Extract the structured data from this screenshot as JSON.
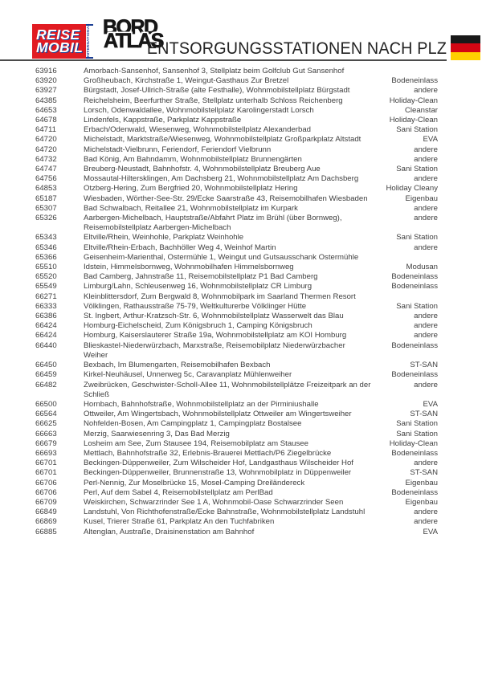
{
  "header": {
    "reisemobil_logo": {
      "line1": "REISE",
      "line2": "MOBIL",
      "subtitle": "INTERNATIONAL",
      "bg_color": "#e11b22",
      "accent_blue": "#1c3f94"
    },
    "bordatlas_logo": {
      "line1": "BORD",
      "line2": "ATLAS"
    },
    "title": "ENTSORGUNGSSTATIONEN NACH PLZ",
    "flag": {
      "name": "german-flag",
      "colors": [
        "#191919",
        "#d40613",
        "#ffd100"
      ]
    }
  },
  "table": {
    "rows": [
      {
        "plz": "63916",
        "description": "Amorbach-Sansenhof, Sansenhof 3, Stellplatz beim Golfclub Gut Sansenhof",
        "type": ""
      },
      {
        "plz": "63920",
        "description": "Großheubach, Kirchstraße 1, Weingut-Gasthaus Zur Bretzel",
        "type": "Bodeneinlass"
      },
      {
        "plz": "63927",
        "description": "Bürgstadt, Josef-Ullrich-Straße (alte Festhalle), Wohnmobilstellplatz Bürgstadt",
        "type": "andere"
      },
      {
        "plz": "64385",
        "description": "Reichelsheim, Beerfurther Straße, Stellplatz unterhalb Schloss Reichenberg",
        "type": "Holiday-Clean"
      },
      {
        "plz": "64653",
        "description": "Lorsch, Odenwaldallee, Wohnmobilstellplatz Karolingerstadt Lorsch",
        "type": "Cleanstar"
      },
      {
        "plz": "64678",
        "description": "Lindenfels, Kappstraße, Parkplatz Kappstraße",
        "type": "Holiday-Clean"
      },
      {
        "plz": "64711",
        "description": "Erbach/Odenwald, Wiesenweg, Wohnmobilstellplatz Alexanderbad",
        "type": "Sani Station"
      },
      {
        "plz": "64720",
        "description": "Michelstadt, Marktstraße/Wiesenweg, Wohnmobilstellplatz Großparkplatz Altstadt",
        "type": "EVA"
      },
      {
        "plz": "64720",
        "description": "Michelstadt-Vielbrunn, Feriendorf, Feriendorf Vielbrunn",
        "type": "andere"
      },
      {
        "plz": "64732",
        "description": "Bad König, Am Bahndamm, Wohnmobilstellplatz Brunnengärten",
        "type": "andere"
      },
      {
        "plz": "64747",
        "description": "Breuberg-Neustadt, Bahnhofstr. 4, Wohnmobilstellplatz Breuberg Aue",
        "type": "Sani Station"
      },
      {
        "plz": "64756",
        "description": "Mossautal-Hiltersklingen, Am Dachsberg 21, Wohnmobilstellplatz Am Dachsberg",
        "type": "andere"
      },
      {
        "plz": "64853",
        "description": "Otzberg-Hering, Zum Bergfried 20, Wohnmobilstellplatz Hering",
        "type": "Holiday Cleany"
      },
      {
        "plz": "65187",
        "description": "Wiesbaden, Wörther-See-Str. 29/Ecke Saarstraße 43, Reisemobilhafen Wiesbaden",
        "type": "Eigenbau"
      },
      {
        "plz": "65307",
        "description": "Bad Schwalbach, Reitallee 21, Wohnmobilstellplatz im Kurpark",
        "type": "andere"
      },
      {
        "plz": "65326",
        "description": "Aarbergen-Michelbach, Hauptstraße/Abfahrt Platz im Brühl (über Bornweg), Reisemobilstellplatz Aarbergen-Michelbach",
        "type": "andere"
      },
      {
        "plz": "65343",
        "description": "Eltville/Rhein, Weinhohle, Parkplatz Weinhohle",
        "type": "Sani Station"
      },
      {
        "plz": "65346",
        "description": "Eltville/Rhein-Erbach, Bachhöller Weg 4, Weinhof Martin",
        "type": "andere"
      },
      {
        "plz": "65366",
        "description": "Geisenheim-Marienthal, Ostermühle 1, Weingut und Gutsausschank Ostermühle",
        "type": ""
      },
      {
        "plz": "65510",
        "description": "Idstein, Himmelsbornweg, Wohnmobilhafen Himmelsbornweg",
        "type": "Modusan"
      },
      {
        "plz": "65520",
        "description": "Bad Camberg, Jahnstraße 11, Reisemobilstellplatz P1 Bad Camberg",
        "type": "Bodeneinlass"
      },
      {
        "plz": "65549",
        "description": "Limburg/Lahn, Schleusenweg 16, Wohnmobilstellplatz CR Limburg",
        "type": "Bodeneinlass"
      },
      {
        "plz": "66271",
        "description": "Kleinblittersdorf, Zum Bergwald 8, Wohnmobilpark im Saarland Thermen Resort",
        "type": ""
      },
      {
        "plz": "66333",
        "description": "Völklingen, Rathausstraße 75-79, Weltkulturerbe Völklinger Hütte",
        "type": "Sani Station"
      },
      {
        "plz": "66386",
        "description": "St. Ingbert, Arthur-Kratzsch-Str. 6, Wohnmobilstellplatz Wasserwelt das Blau",
        "type": "andere"
      },
      {
        "plz": "66424",
        "description": "Homburg-Eichelscheid, Zum Königsbruch 1, Camping Königsbruch",
        "type": "andere"
      },
      {
        "plz": "66424",
        "description": "Homburg, Kaiserslauterer Straße 19a, Wohnmobilstellplatz am KOI Homburg",
        "type": "andere"
      },
      {
        "plz": "66440",
        "description": "Blieskastel-Niederwürzbach, Marxstraße, Reisemobilplatz Niederwürzbacher Weiher",
        "type": "Bodeneinlass"
      },
      {
        "plz": "66450",
        "description": "Bexbach, Im Blumengarten, Reisemobilhafen Bexbach",
        "type": "ST-SAN"
      },
      {
        "plz": "66459",
        "description": "Kirkel-Neuhäusel, Unnerweg 5c, Caravanplatz Mühlenweiher",
        "type": "Bodeneinlass"
      },
      {
        "plz": "66482",
        "description": "Zweibrücken, Geschwister-Scholl-Allee 11, Wohnmobilstellplätze Freizeitpark an der Schließ",
        "type": "andere"
      },
      {
        "plz": "66500",
        "description": "Hornbach, Bahnhofstraße, Wohnmobilstellplatz an der Pirminiushalle",
        "type": "EVA"
      },
      {
        "plz": "66564",
        "description": "Ottweiler, Am Wingertsbach, Wohnmobilstellplatz Ottweiler am Wingertsweiher",
        "type": "ST-SAN"
      },
      {
        "plz": "66625",
        "description": "Nohfelden-Bosen, Am Campingplatz 1, Campingplatz Bostalsee",
        "type": "Sani Station"
      },
      {
        "plz": "66663",
        "description": "Merzig, Saarwiesenring 3, Das Bad Merzig",
        "type": "Sani Station"
      },
      {
        "plz": "66679",
        "description": "Losheim am See, Zum Stausee 194, Reisemobilplatz am Stausee",
        "type": "Holiday-Clean"
      },
      {
        "plz": "66693",
        "description": "Mettlach, Bahnhofstraße 32, Erlebnis-Brauerei Mettlach/P6 Ziegelbrücke",
        "type": "Bodeneinlass"
      },
      {
        "plz": "66701",
        "description": "Beckingen-Düppenweiler, Zum Wilscheider Hof, Landgasthaus Wilscheider Hof",
        "type": "andere"
      },
      {
        "plz": "66701",
        "description": "Beckingen-Düppenweiler, Brunnenstraße 13, Wohnmobilplatz in Düppenweiler",
        "type": "ST-SAN"
      },
      {
        "plz": "66706",
        "description": "Perl-Nennig, Zur Moselbrücke 15, Mosel-Camping Dreiländereck",
        "type": "Eigenbau"
      },
      {
        "plz": "66706",
        "description": "Perl, Auf dem Sabel 4, Reisemobilstellplatz am PerlBad",
        "type": "Bodeneinlass"
      },
      {
        "plz": "66709",
        "description": "Weiskirchen, Schwarzrinder See 1 A, Wohnmobil-Oase Schwarzrinder Seen",
        "type": "Eigenbau"
      },
      {
        "plz": "66849",
        "description": "Landstuhl, Von Richthofenstraße/Ecke Bahnstraße, Wohnmobilstellplatz Landstuhl",
        "type": "andere"
      },
      {
        "plz": "66869",
        "description": "Kusel, Trierer Straße 61, Parkplatz An den Tuchfabriken",
        "type": "andere"
      },
      {
        "plz": "66885",
        "description": "Altenglan, Austraße, Draisinenstation am Bahnhof",
        "type": "EVA"
      }
    ]
  }
}
